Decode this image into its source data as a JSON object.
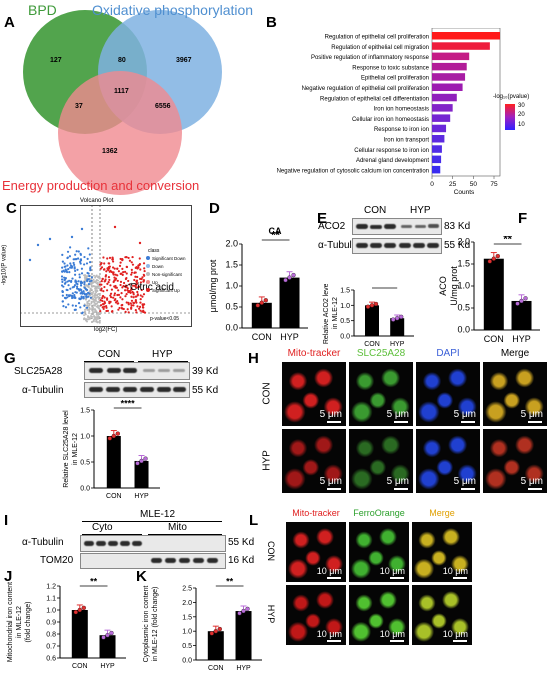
{
  "colors": {
    "bpd": "#3f9a3a",
    "oxphos": "#4f8fd0",
    "energy": "#e8323a",
    "con": "#e03030",
    "hyp": "#b86bd8",
    "bar_grad_top": "#ff2020",
    "bar_grad_bottom": "#3020ff"
  },
  "panels": {
    "A": "A",
    "B": "B",
    "C": "C",
    "D": "D",
    "E": "E",
    "F": "F",
    "G": "G",
    "H": "H",
    "I": "I",
    "J": "J",
    "K": "K",
    "L": "L"
  },
  "venn": {
    "set1": "BPD",
    "set2": "Oxidative phosphorylation",
    "set3": "Energy production and conversion",
    "n_bpd_only": "127",
    "n_bpd_ox": "80",
    "n_ox_only": "3967",
    "n_bpd_en": "37",
    "n_all": "1117",
    "n_ox_en": "6556",
    "n_en_only": "1362"
  },
  "go_chart": {
    "xlabel": "Counts",
    "ticks": [
      "0",
      "25",
      "50",
      "75"
    ],
    "legend_title": "-log₁₀(pvalue)",
    "legend_ticks": [
      "30",
      "20",
      "10"
    ],
    "terms": [
      {
        "label": "Regulation of epithelial cell proliferation",
        "count": 96,
        "color": "#ff1a1a"
      },
      {
        "label": "Regulation of epithelial cell migration",
        "count": 70,
        "color": "#ee1c3c"
      },
      {
        "label": "Positive regulation of inflammatory response",
        "count": 45,
        "color": "#c41c86"
      },
      {
        "label": "Response to toxic substance",
        "count": 42,
        "color": "#b21c98"
      },
      {
        "label": "Epithelial cell proliferation",
        "count": 40,
        "color": "#a81ca4"
      },
      {
        "label": "Negative regulation of epithelial cell proliferation",
        "count": 37,
        "color": "#9c1cb0"
      },
      {
        "label": "Regulation of epithelial cell differentiation",
        "count": 30,
        "color": "#9020bc"
      },
      {
        "label": "Iron ion homeostasis",
        "count": 25,
        "color": "#8224c8"
      },
      {
        "label": "Cellular iron ion homeostasis",
        "count": 22,
        "color": "#7426d2"
      },
      {
        "label": "Response to iron ion",
        "count": 17,
        "color": "#6a28da"
      },
      {
        "label": "Iron ion transport",
        "count": 15,
        "color": "#5c2ae0"
      },
      {
        "label": "Cellular response to iron ion",
        "count": 12,
        "color": "#502ce6"
      },
      {
        "label": "Adrenal gland development",
        "count": 11,
        "color": "#462ceb"
      },
      {
        "label": "Negative regulation of cytosolic calcium ion concentration",
        "count": 10,
        "color": "#3a2cf0"
      }
    ]
  },
  "volcano": {
    "title": "Volcano Plot",
    "xlabel": "log2(FC)",
    "ylabel": "-log10(P value)",
    "annotation": "Citric acid",
    "legend_title": "class",
    "legend": [
      {
        "label": "Significant Down",
        "color": "#3a7bd5"
      },
      {
        "label": "Down",
        "color": "#8fb8e8"
      },
      {
        "label": "Non-significant",
        "color": "#bbbbbb"
      },
      {
        "label": "Up",
        "color": "#f08a8a"
      },
      {
        "label": "Significant Up",
        "color": "#e02020"
      }
    ],
    "threshold": "p-value<0.05"
  },
  "panel_d": {
    "title": "CA",
    "ylabel": "μmol/mg prot",
    "sig": "**",
    "groups": [
      "CON",
      "HYP"
    ],
    "values": [
      0.6,
      1.2
    ],
    "ylim": [
      0,
      2.0
    ],
    "ticks": [
      "0.0",
      "0.5",
      "1.0",
      "1.5",
      "2.0"
    ]
  },
  "panel_e": {
    "groups_header": [
      "CON",
      "HYP"
    ],
    "bands": [
      "ACO2",
      "α-Tubulin"
    ],
    "kd": [
      "83 Kd",
      "55 Kd"
    ],
    "ylabel": "Relative ACO2 level in MLE-12",
    "sig": "*",
    "groups": [
      "CON",
      "HYP"
    ],
    "values": [
      1.0,
      0.58
    ],
    "ylim": [
      0,
      1.5
    ],
    "ticks": [
      "0.0",
      "0.5",
      "1.0",
      "1.5"
    ]
  },
  "panel_f": {
    "ylabel": "ACO U/mg prot",
    "sig": "**",
    "groups": [
      "CON",
      "HYP"
    ],
    "values": [
      1.62,
      0.66
    ],
    "ylim": [
      0,
      2.0
    ],
    "ticks": [
      "0.0",
      "0.5",
      "1.0",
      "1.5",
      "2.0"
    ]
  },
  "panel_g": {
    "groups_header": [
      "CON",
      "HYP"
    ],
    "bands": [
      "SLC25A28",
      "α-Tubulin"
    ],
    "kd": [
      "39 Kd",
      "55 Kd"
    ],
    "ylabel": "Relative SLC25A28 level in MLE-12",
    "sig": "****",
    "groups": [
      "CON",
      "HYP"
    ],
    "values": [
      1.0,
      0.52
    ],
    "ylim": [
      0,
      1.5
    ],
    "ticks": [
      "0.0",
      "0.5",
      "1.0",
      "1.5"
    ]
  },
  "panel_h": {
    "columns": [
      "Mito-tracker",
      "SLC25A28",
      "DAPI",
      "Merge"
    ],
    "column_colors": [
      "#e02020",
      "#5cbf3a",
      "#3a5fd8",
      "#000000"
    ],
    "rows": [
      "CON",
      "HYP"
    ],
    "scale": "5 μm"
  },
  "panel_i": {
    "title": "MLE-12",
    "fractions": [
      "Cyto",
      "Mito"
    ],
    "bands": [
      "α-Tubulin",
      "TOM20"
    ],
    "kd": [
      "55 Kd",
      "16 Kd"
    ]
  },
  "panel_j": {
    "ylabel": "Mitochondrial iron content in MLE-12 (fold change)",
    "sig": "**",
    "groups": [
      "CON",
      "HYP"
    ],
    "values": [
      1.0,
      0.79
    ],
    "ylim": [
      0.6,
      1.2
    ],
    "ticks": [
      "0.6",
      "0.7",
      "0.8",
      "0.9",
      "1.0",
      "1.1",
      "1.2"
    ]
  },
  "panel_k": {
    "ylabel": "Cytoplasmic iron content in MLE-12 (fold change)",
    "sig": "**",
    "groups": [
      "CON",
      "HYP"
    ],
    "values": [
      1.0,
      1.7
    ],
    "ylim": [
      0,
      2.5
    ],
    "ticks": [
      "0.0",
      "0.5",
      "1.0",
      "1.5",
      "2.0",
      "2.5"
    ]
  },
  "panel_l": {
    "columns": [
      "Mito-tracker",
      "FerroOrange",
      "Merge"
    ],
    "column_colors": [
      "#e02020",
      "#2ca02c",
      "#e0a000"
    ],
    "rows": [
      "CON",
      "HYP"
    ],
    "scale": "10 μm"
  }
}
